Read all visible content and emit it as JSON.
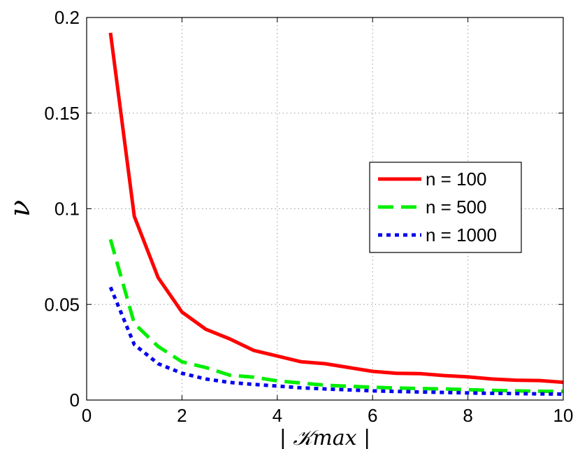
{
  "chart_data": {
    "type": "line",
    "xlabel": "| 𝒦max |",
    "ylabel": "ν",
    "xlim": [
      0,
      10
    ],
    "ylim": [
      0,
      0.2
    ],
    "xticks": [
      0,
      2,
      4,
      6,
      8,
      10
    ],
    "yticks": [
      0,
      0.05,
      0.1,
      0.15,
      0.2
    ],
    "xtick_labels": [
      "0",
      "2",
      "4",
      "6",
      "8",
      "10"
    ],
    "ytick_labels": [
      "0",
      "0.05",
      "0.1",
      "0.15",
      "0.2"
    ],
    "grid": true,
    "legend_position": "right",
    "x": [
      0.5,
      1,
      1.5,
      2,
      2.5,
      3,
      3.5,
      4,
      4.5,
      5,
      5.5,
      6,
      6.5,
      7,
      7.5,
      8,
      8.5,
      9,
      9.5,
      10
    ],
    "series": [
      {
        "name": "n = 100",
        "color": "#ff0000",
        "dash": "solid",
        "values": [
          0.192,
          0.096,
          0.064,
          0.046,
          0.037,
          0.032,
          0.026,
          0.023,
          0.02,
          0.019,
          0.017,
          0.015,
          0.014,
          0.0138,
          0.0128,
          0.0121,
          0.011,
          0.0104,
          0.0102,
          0.0093
        ]
      },
      {
        "name": "n = 500",
        "color": "#00ee00",
        "dash": "dashed",
        "values": [
          0.084,
          0.04,
          0.028,
          0.02,
          0.017,
          0.013,
          0.012,
          0.01,
          0.0089,
          0.0078,
          0.0072,
          0.0067,
          0.0063,
          0.006,
          0.0058,
          0.0054,
          0.0051,
          0.0048,
          0.0046,
          0.0045
        ]
      },
      {
        "name": "n = 1000",
        "color": "#0000ee",
        "dash": "dotted",
        "values": [
          0.059,
          0.029,
          0.019,
          0.014,
          0.011,
          0.0092,
          0.0082,
          0.0073,
          0.0064,
          0.0058,
          0.0053,
          0.0048,
          0.0045,
          0.0042,
          0.004,
          0.0037,
          0.0035,
          0.0034,
          0.0032,
          0.0031
        ]
      }
    ]
  }
}
